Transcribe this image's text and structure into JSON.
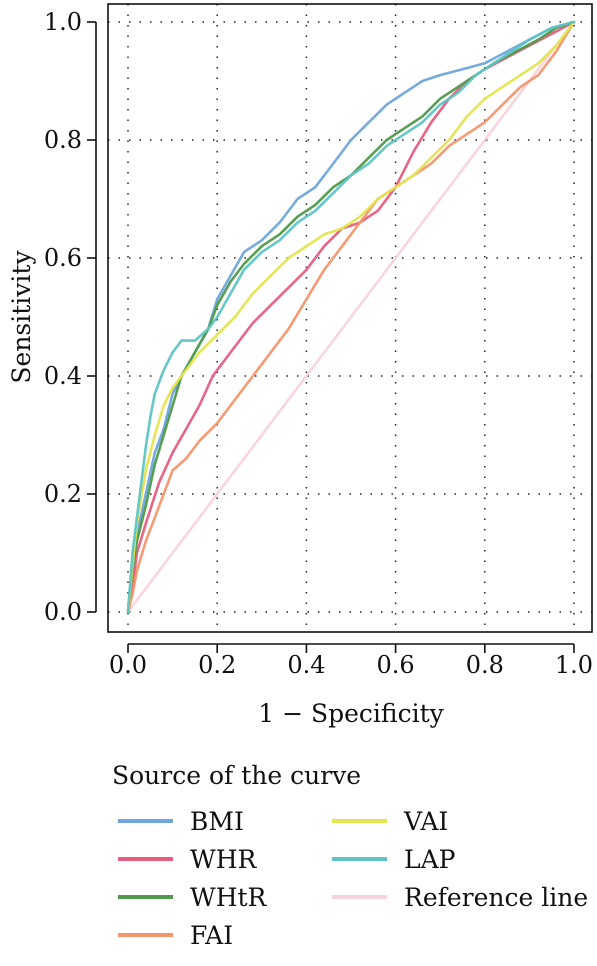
{
  "chart_data": {
    "type": "line",
    "title": "",
    "xlabel": "1 − Specificity",
    "ylabel": "Sensitivity",
    "xlim": [
      0,
      1
    ],
    "ylim": [
      0,
      1
    ],
    "x_ticks": [
      "0.0",
      "0.2",
      "0.4",
      "0.6",
      "0.8",
      "1.0"
    ],
    "y_ticks": [
      "0.0",
      "0.2",
      "0.4",
      "0.6",
      "0.8",
      "1.0"
    ],
    "grid": true,
    "legend": {
      "title": "Source of the curve",
      "placement": "bottom"
    },
    "series": [
      {
        "name": "BMI",
        "color": "#6fa6dc",
        "points": [
          [
            0,
            0
          ],
          [
            0.01,
            0.08
          ],
          [
            0.02,
            0.13
          ],
          [
            0.04,
            0.2
          ],
          [
            0.06,
            0.27
          ],
          [
            0.08,
            0.31
          ],
          [
            0.1,
            0.37
          ],
          [
            0.12,
            0.4
          ],
          [
            0.15,
            0.44
          ],
          [
            0.18,
            0.48
          ],
          [
            0.2,
            0.53
          ],
          [
            0.23,
            0.57
          ],
          [
            0.26,
            0.61
          ],
          [
            0.3,
            0.63
          ],
          [
            0.34,
            0.66
          ],
          [
            0.38,
            0.7
          ],
          [
            0.42,
            0.72
          ],
          [
            0.46,
            0.76
          ],
          [
            0.5,
            0.8
          ],
          [
            0.54,
            0.83
          ],
          [
            0.58,
            0.86
          ],
          [
            0.62,
            0.88
          ],
          [
            0.66,
            0.9
          ],
          [
            0.7,
            0.91
          ],
          [
            0.75,
            0.92
          ],
          [
            0.8,
            0.93
          ],
          [
            0.85,
            0.95
          ],
          [
            0.9,
            0.97
          ],
          [
            0.95,
            0.99
          ],
          [
            1,
            1
          ]
        ]
      },
      {
        "name": "WHR",
        "color": "#e85d7e",
        "points": [
          [
            0,
            0
          ],
          [
            0.01,
            0.04
          ],
          [
            0.02,
            0.1
          ],
          [
            0.04,
            0.15
          ],
          [
            0.07,
            0.22
          ],
          [
            0.1,
            0.27
          ],
          [
            0.13,
            0.31
          ],
          [
            0.16,
            0.35
          ],
          [
            0.19,
            0.4
          ],
          [
            0.24,
            0.45
          ],
          [
            0.28,
            0.49
          ],
          [
            0.32,
            0.52
          ],
          [
            0.36,
            0.55
          ],
          [
            0.4,
            0.58
          ],
          [
            0.44,
            0.62
          ],
          [
            0.48,
            0.65
          ],
          [
            0.52,
            0.66
          ],
          [
            0.56,
            0.68
          ],
          [
            0.6,
            0.72
          ],
          [
            0.64,
            0.78
          ],
          [
            0.68,
            0.83
          ],
          [
            0.72,
            0.87
          ],
          [
            0.76,
            0.9
          ],
          [
            0.8,
            0.92
          ],
          [
            0.85,
            0.94
          ],
          [
            0.9,
            0.96
          ],
          [
            0.95,
            0.98
          ],
          [
            1,
            1
          ]
        ]
      },
      {
        "name": "WHtR",
        "color": "#4f9a4a",
        "points": [
          [
            0,
            0
          ],
          [
            0.01,
            0.07
          ],
          [
            0.02,
            0.12
          ],
          [
            0.04,
            0.18
          ],
          [
            0.06,
            0.25
          ],
          [
            0.08,
            0.3
          ],
          [
            0.1,
            0.35
          ],
          [
            0.12,
            0.4
          ],
          [
            0.15,
            0.44
          ],
          [
            0.18,
            0.48
          ],
          [
            0.2,
            0.52
          ],
          [
            0.23,
            0.56
          ],
          [
            0.26,
            0.59
          ],
          [
            0.3,
            0.62
          ],
          [
            0.34,
            0.64
          ],
          [
            0.38,
            0.67
          ],
          [
            0.42,
            0.69
          ],
          [
            0.46,
            0.72
          ],
          [
            0.5,
            0.74
          ],
          [
            0.54,
            0.77
          ],
          [
            0.58,
            0.8
          ],
          [
            0.62,
            0.82
          ],
          [
            0.66,
            0.84
          ],
          [
            0.7,
            0.87
          ],
          [
            0.74,
            0.89
          ],
          [
            0.78,
            0.91
          ],
          [
            0.82,
            0.93
          ],
          [
            0.87,
            0.95
          ],
          [
            0.92,
            0.97
          ],
          [
            0.96,
            0.99
          ],
          [
            1,
            1
          ]
        ]
      },
      {
        "name": "FAI",
        "color": "#f4956a",
        "points": [
          [
            0,
            0
          ],
          [
            0.01,
            0.03
          ],
          [
            0.02,
            0.07
          ],
          [
            0.04,
            0.12
          ],
          [
            0.06,
            0.16
          ],
          [
            0.08,
            0.2
          ],
          [
            0.1,
            0.24
          ],
          [
            0.13,
            0.26
          ],
          [
            0.16,
            0.29
          ],
          [
            0.2,
            0.32
          ],
          [
            0.24,
            0.36
          ],
          [
            0.28,
            0.4
          ],
          [
            0.32,
            0.44
          ],
          [
            0.36,
            0.48
          ],
          [
            0.4,
            0.53
          ],
          [
            0.44,
            0.58
          ],
          [
            0.48,
            0.62
          ],
          [
            0.52,
            0.66
          ],
          [
            0.56,
            0.7
          ],
          [
            0.6,
            0.72
          ],
          [
            0.64,
            0.74
          ],
          [
            0.68,
            0.76
          ],
          [
            0.72,
            0.79
          ],
          [
            0.76,
            0.81
          ],
          [
            0.8,
            0.83
          ],
          [
            0.84,
            0.86
          ],
          [
            0.88,
            0.89
          ],
          [
            0.92,
            0.91
          ],
          [
            0.96,
            0.95
          ],
          [
            1,
            1
          ]
        ]
      },
      {
        "name": "VAI",
        "color": "#e4e44e",
        "points": [
          [
            0,
            0
          ],
          [
            0.01,
            0.08
          ],
          [
            0.02,
            0.15
          ],
          [
            0.04,
            0.24
          ],
          [
            0.06,
            0.3
          ],
          [
            0.08,
            0.35
          ],
          [
            0.1,
            0.38
          ],
          [
            0.13,
            0.41
          ],
          [
            0.16,
            0.44
          ],
          [
            0.2,
            0.47
          ],
          [
            0.24,
            0.5
          ],
          [
            0.28,
            0.54
          ],
          [
            0.32,
            0.57
          ],
          [
            0.36,
            0.6
          ],
          [
            0.4,
            0.62
          ],
          [
            0.44,
            0.64
          ],
          [
            0.48,
            0.65
          ],
          [
            0.52,
            0.67
          ],
          [
            0.56,
            0.7
          ],
          [
            0.6,
            0.72
          ],
          [
            0.64,
            0.74
          ],
          [
            0.68,
            0.77
          ],
          [
            0.72,
            0.8
          ],
          [
            0.76,
            0.84
          ],
          [
            0.8,
            0.87
          ],
          [
            0.84,
            0.89
          ],
          [
            0.88,
            0.91
          ],
          [
            0.92,
            0.93
          ],
          [
            0.96,
            0.96
          ],
          [
            1,
            1
          ]
        ]
      },
      {
        "name": "LAP",
        "color": "#5ec4c6",
        "points": [
          [
            0,
            0
          ],
          [
            0.01,
            0.1
          ],
          [
            0.02,
            0.16
          ],
          [
            0.03,
            0.22
          ],
          [
            0.04,
            0.28
          ],
          [
            0.05,
            0.33
          ],
          [
            0.06,
            0.37
          ],
          [
            0.08,
            0.41
          ],
          [
            0.1,
            0.44
          ],
          [
            0.12,
            0.46
          ],
          [
            0.15,
            0.46
          ],
          [
            0.18,
            0.48
          ],
          [
            0.2,
            0.5
          ],
          [
            0.23,
            0.54
          ],
          [
            0.26,
            0.58
          ],
          [
            0.3,
            0.61
          ],
          [
            0.34,
            0.63
          ],
          [
            0.38,
            0.66
          ],
          [
            0.42,
            0.68
          ],
          [
            0.46,
            0.71
          ],
          [
            0.5,
            0.74
          ],
          [
            0.54,
            0.76
          ],
          [
            0.58,
            0.79
          ],
          [
            0.62,
            0.81
          ],
          [
            0.66,
            0.83
          ],
          [
            0.7,
            0.86
          ],
          [
            0.74,
            0.88
          ],
          [
            0.78,
            0.91
          ],
          [
            0.82,
            0.93
          ],
          [
            0.86,
            0.95
          ],
          [
            0.9,
            0.97
          ],
          [
            0.95,
            0.99
          ],
          [
            1,
            1
          ]
        ]
      },
      {
        "name": "Reference line",
        "color": "#f9d3dc",
        "points": [
          [
            0,
            0
          ],
          [
            1,
            1
          ]
        ]
      }
    ]
  }
}
